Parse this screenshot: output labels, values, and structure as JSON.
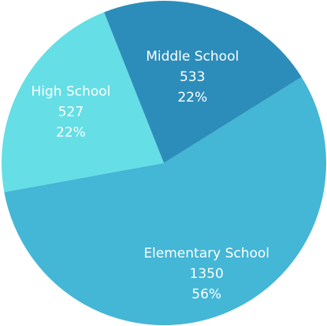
{
  "chart_data": {
    "type": "pie",
    "title": "",
    "slices": [
      {
        "label": "Elementary School",
        "value": 1350,
        "percent": "56%",
        "color": "#44B6D6"
      },
      {
        "label": "High School",
        "value": 527,
        "percent": "22%",
        "color": "#65DEE5"
      },
      {
        "label": "Middle School",
        "value": 533,
        "percent": "22%",
        "color": "#2C8DBA"
      }
    ],
    "start_angle_deg": 32,
    "direction": "clockwise",
    "legend": "none",
    "data_labels": "inside"
  }
}
